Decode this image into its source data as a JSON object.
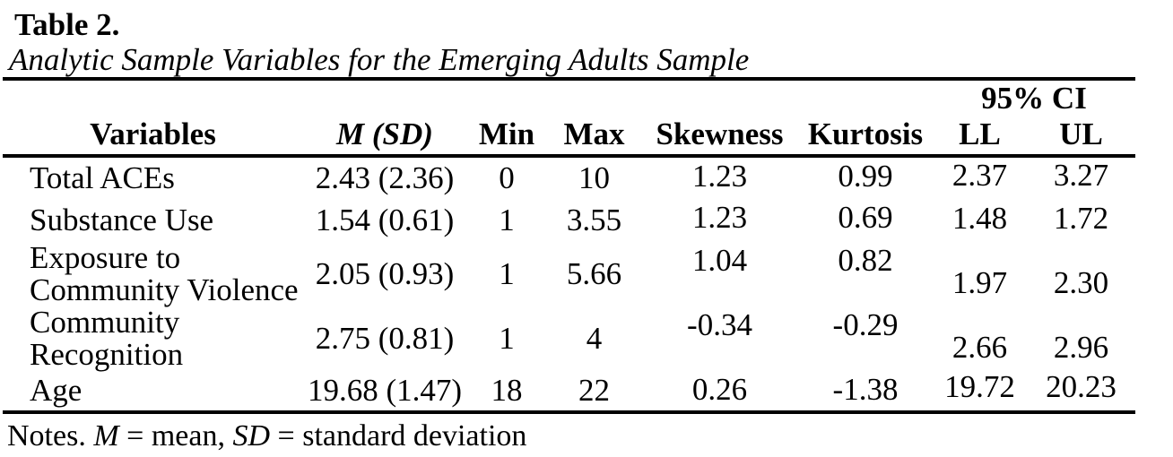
{
  "heading": {
    "label": "Table 2.",
    "title": "Analytic Sample Variables for the Emerging Adults Sample"
  },
  "table": {
    "ci_span_header": "95% CI",
    "columns": [
      "Variables",
      "M (SD)",
      "Min",
      "Max",
      "Skewness",
      "Kurtosis",
      "LL",
      "UL"
    ],
    "rows": [
      {
        "variable": "Total ACEs",
        "m_sd": "2.43 (2.36)",
        "min": "0",
        "max": "10",
        "skewness": "1.23",
        "kurtosis": "0.99",
        "ll": "2.37",
        "ul": "3.27"
      },
      {
        "variable": "Substance Use",
        "m_sd": "1.54 (0.61)",
        "min": "1",
        "max": "3.55",
        "skewness": "1.23",
        "kurtosis": "0.69",
        "ll": "1.48",
        "ul": "1.72"
      },
      {
        "variable": "Exposure to\nCommunity Violence",
        "m_sd": "2.05 (0.93)",
        "min": "1",
        "max": "5.66",
        "skewness": "1.04",
        "kurtosis": "0.82",
        "ll": "1.97",
        "ul": "2.30"
      },
      {
        "variable": "Community\nRecognition",
        "m_sd": "2.75 (0.81)",
        "min": "1",
        "max": "4",
        "skewness": "-0.34",
        "kurtosis": "-0.29",
        "ll": "2.66",
        "ul": "2.96"
      },
      {
        "variable": "Age",
        "m_sd": "19.68 (1.47)",
        "min": "18",
        "max": "22",
        "skewness": "0.26",
        "kurtosis": "-1.38",
        "ll": "19.72",
        "ul": "20.23"
      }
    ]
  },
  "notes": {
    "prefix": "Notes. ",
    "m_label": "M",
    "m_text": " = mean, ",
    "sd_label": "SD",
    "sd_text": " = standard deviation"
  }
}
